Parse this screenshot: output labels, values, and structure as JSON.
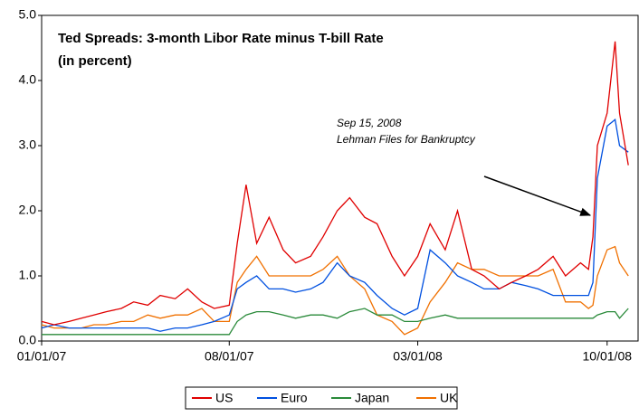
{
  "chart_data": {
    "type": "line",
    "title": "Ted Spreads: 3-month Libor Rate minus T-bill Rate",
    "subtitle": "(in percent)",
    "annotations": [
      "Sep 15, 2008",
      "Lehman Files for Bankruptcy"
    ],
    "x": [
      "01/01/07",
      "01/15/07",
      "02/01/07",
      "02/15/07",
      "03/01/07",
      "03/15/07",
      "04/01/07",
      "04/15/07",
      "05/01/07",
      "05/15/07",
      "06/01/07",
      "06/15/07",
      "07/01/07",
      "07/15/07",
      "08/01/07",
      "08/10/07",
      "08/20/07",
      "09/01/07",
      "09/15/07",
      "10/01/07",
      "10/15/07",
      "11/01/07",
      "11/15/07",
      "12/01/07",
      "12/15/07",
      "01/01/08",
      "01/15/08",
      "02/01/08",
      "02/15/08",
      "03/01/08",
      "03/15/08",
      "04/01/08",
      "04/15/08",
      "05/01/08",
      "05/15/08",
      "06/01/08",
      "06/15/08",
      "07/01/08",
      "07/15/08",
      "08/01/08",
      "08/15/08",
      "09/01/08",
      "09/10/08",
      "09/15/08",
      "09/20/08",
      "10/01/08",
      "10/10/08",
      "10/15/08",
      "10/25/08"
    ],
    "series": [
      {
        "name": "US",
        "color": "#e00000",
        "values": [
          0.3,
          0.25,
          0.3,
          0.35,
          0.4,
          0.45,
          0.5,
          0.6,
          0.55,
          0.7,
          0.65,
          0.8,
          0.6,
          0.5,
          0.55,
          1.5,
          2.4,
          1.5,
          1.9,
          1.4,
          1.2,
          1.3,
          1.6,
          2.0,
          2.2,
          1.9,
          1.8,
          1.3,
          1.0,
          1.3,
          1.8,
          1.4,
          2.0,
          1.1,
          1.0,
          0.8,
          0.9,
          1.0,
          1.1,
          1.3,
          1.0,
          1.2,
          1.1,
          1.6,
          3.0,
          3.5,
          4.6,
          3.5,
          2.7
        ]
      },
      {
        "name": "Euro",
        "color": "#0050e0",
        "values": [
          0.2,
          0.25,
          0.2,
          0.2,
          0.2,
          0.2,
          0.2,
          0.2,
          0.2,
          0.15,
          0.2,
          0.2,
          0.25,
          0.3,
          0.4,
          0.8,
          0.9,
          1.0,
          0.8,
          0.8,
          0.75,
          0.8,
          0.9,
          1.2,
          1.0,
          0.9,
          0.7,
          0.5,
          0.4,
          0.5,
          1.4,
          1.2,
          1.0,
          0.9,
          0.8,
          0.8,
          0.9,
          0.85,
          0.8,
          0.7,
          0.7,
          0.7,
          0.7,
          0.9,
          2.5,
          3.3,
          3.4,
          3.0,
          2.9
        ]
      },
      {
        "name": "Japan",
        "color": "#2a8a3a",
        "values": [
          0.1,
          0.1,
          0.1,
          0.1,
          0.1,
          0.1,
          0.1,
          0.1,
          0.1,
          0.1,
          0.1,
          0.1,
          0.1,
          0.1,
          0.1,
          0.3,
          0.4,
          0.45,
          0.45,
          0.4,
          0.35,
          0.4,
          0.4,
          0.35,
          0.45,
          0.5,
          0.4,
          0.4,
          0.3,
          0.3,
          0.35,
          0.4,
          0.35,
          0.35,
          0.35,
          0.35,
          0.35,
          0.35,
          0.35,
          0.35,
          0.35,
          0.35,
          0.35,
          0.35,
          0.4,
          0.45,
          0.45,
          0.35,
          0.5
        ]
      },
      {
        "name": "UK",
        "color": "#f07000",
        "values": [
          0.25,
          0.2,
          0.2,
          0.2,
          0.25,
          0.25,
          0.3,
          0.3,
          0.4,
          0.35,
          0.4,
          0.4,
          0.5,
          0.3,
          0.3,
          0.9,
          1.1,
          1.3,
          1.0,
          1.0,
          1.0,
          1.0,
          1.1,
          1.3,
          1.0,
          0.8,
          0.4,
          0.3,
          0.1,
          0.2,
          0.6,
          0.9,
          1.2,
          1.1,
          1.1,
          1.0,
          1.0,
          1.0,
          1.0,
          1.1,
          0.6,
          0.6,
          0.5,
          0.55,
          1.0,
          1.4,
          1.45,
          1.2,
          1.0
        ]
      }
    ],
    "xlim": [
      "01/01/07",
      "11/05/08"
    ],
    "xticks": [
      "01/01/07",
      "08/01/07",
      "03/01/08",
      "10/01/08"
    ],
    "ylim": [
      0,
      5
    ],
    "yticks": [
      {
        "value": 0,
        "label": "0.0"
      },
      {
        "value": 1,
        "label": "1.0"
      },
      {
        "value": 2,
        "label": "2.0"
      },
      {
        "value": 3,
        "label": "3.0"
      },
      {
        "value": 4,
        "label": "4.0"
      },
      {
        "value": 5,
        "label": "5.0"
      }
    ]
  }
}
